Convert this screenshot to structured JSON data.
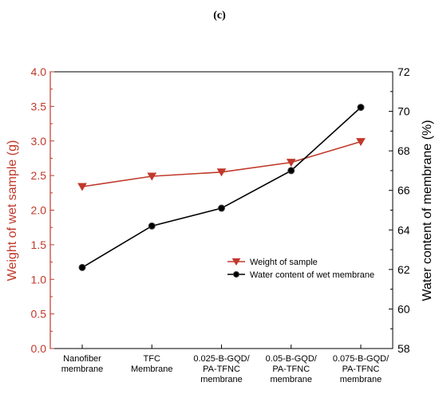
{
  "panel_label": "(c)",
  "chart_data": {
    "type": "line",
    "categories": [
      [
        "Nanofiber",
        "membrane"
      ],
      [
        "TFC",
        "Membrane"
      ],
      [
        "0.025-B-GQD/",
        "PA-TFNC",
        "membrane"
      ],
      [
        "0.05-B-GQD/",
        "PA-TFNC",
        "membrane"
      ],
      [
        "0.075-B-GQD/",
        "PA-TFNC",
        "membrane"
      ]
    ],
    "series": [
      {
        "name": "Weight of sample",
        "axis": "left",
        "color": "#c0392b",
        "marker": "triangle-down",
        "values": [
          2.34,
          2.49,
          2.55,
          2.69,
          2.99
        ]
      },
      {
        "name": "Water content of wet membrane",
        "axis": "right",
        "color": "#000000",
        "marker": "circle",
        "values": [
          62.1,
          64.2,
          65.1,
          67.0,
          70.2
        ]
      }
    ],
    "ylabel_left": "Weight of wet sample (g)",
    "ylabel_right": "Water content of membrane (%)",
    "ylim_left": [
      0.0,
      4.0
    ],
    "ylim_right": [
      58,
      72
    ],
    "yticks_left": [
      "0.0",
      "0.5",
      "1.0",
      "1.5",
      "2.0",
      "2.5",
      "3.0",
      "3.5",
      "4.0"
    ],
    "yticks_right": [
      "58",
      "60",
      "62",
      "64",
      "66",
      "68",
      "70",
      "72"
    ],
    "grid": false,
    "legend_position": "lower-right"
  }
}
